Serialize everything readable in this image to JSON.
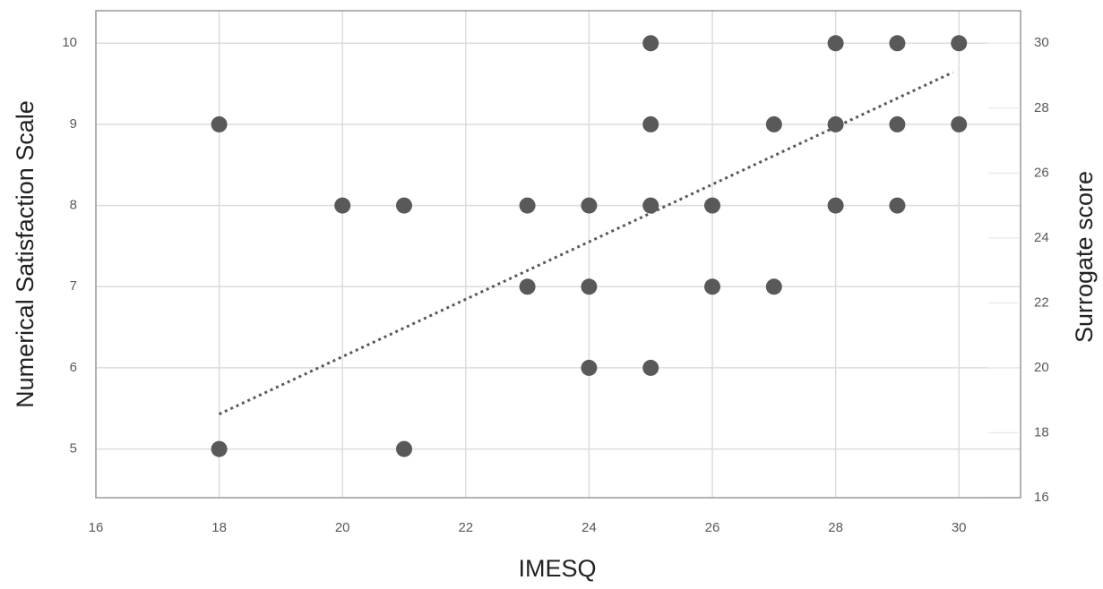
{
  "chart_data": {
    "type": "scatter",
    "xlabel": "IMESQ",
    "ylabel": "Numerical Satisfaction Scale",
    "y2label": "Surrogate score",
    "xlim": [
      16,
      31
    ],
    "xticks": [
      16,
      18,
      20,
      22,
      24,
      26,
      28,
      30
    ],
    "ylim": [
      4.4,
      10.4
    ],
    "yticks": [
      5,
      6,
      7,
      8,
      9,
      10
    ],
    "y2lim": [
      16,
      31
    ],
    "y2ticks": [
      16,
      18,
      20,
      22,
      24,
      26,
      28,
      30
    ],
    "grid": true,
    "series": [
      {
        "color": "#595959",
        "x": [
          25,
          28,
          29,
          30,
          18,
          25,
          27,
          28,
          29,
          30,
          20,
          21,
          23,
          24,
          25,
          26,
          28,
          29,
          23,
          24,
          26,
          27,
          24,
          25,
          18,
          21
        ],
        "y": [
          10,
          10,
          10,
          10,
          9,
          9,
          9,
          9,
          9,
          9,
          8,
          8,
          8,
          8,
          8,
          8,
          8,
          8,
          7,
          7,
          7,
          7,
          6,
          6,
          5,
          5
        ]
      }
    ],
    "trendline": {
      "color": "#595959",
      "x": [
        18,
        29.9
      ],
      "y": [
        5.43,
        9.64
      ]
    }
  }
}
